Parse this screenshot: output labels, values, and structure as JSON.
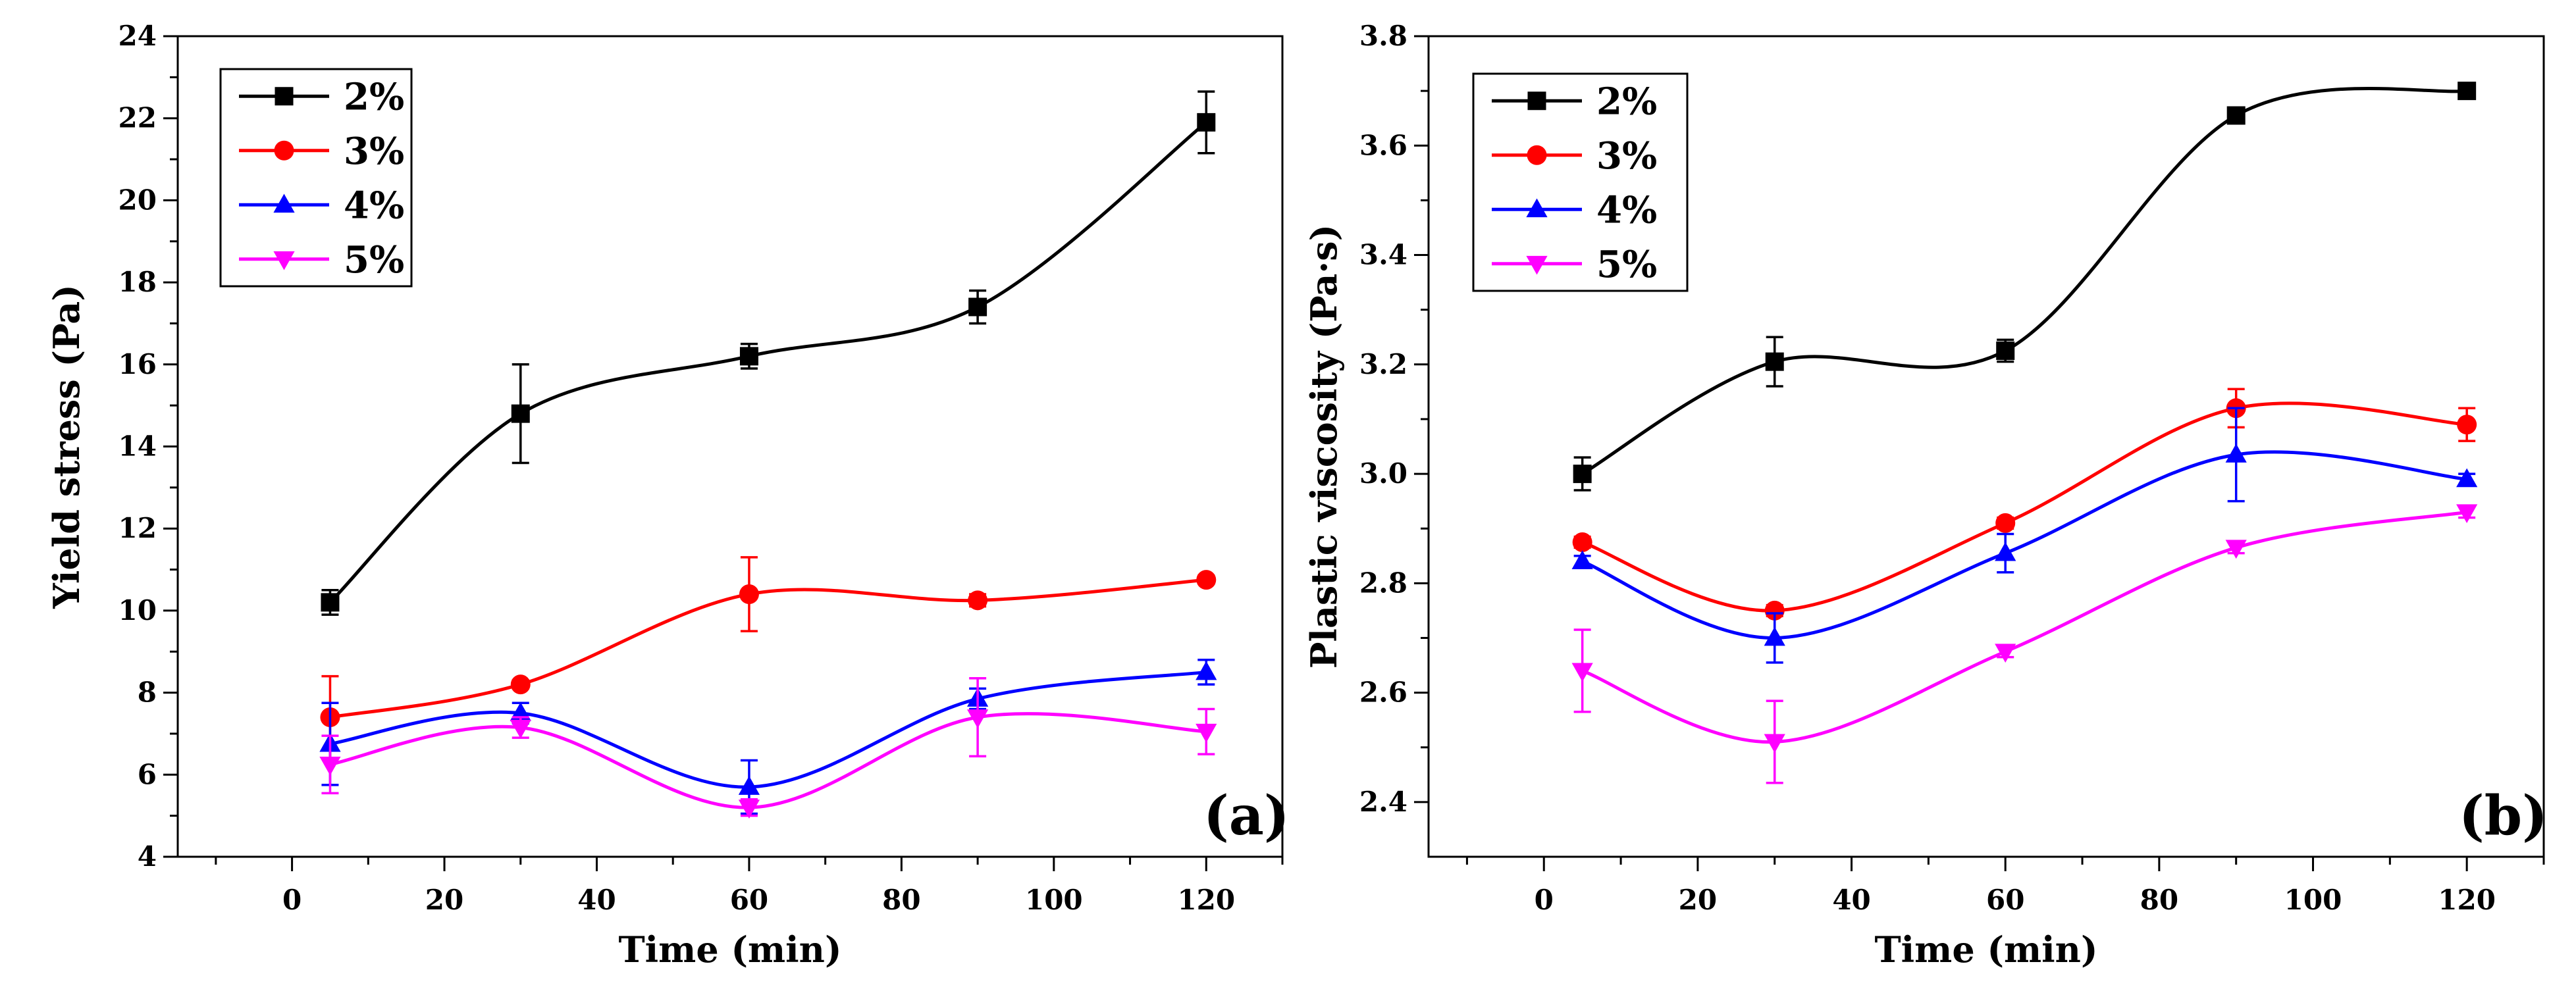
{
  "chart_data": [
    {
      "type": "line",
      "panel_label": "(a)",
      "xlabel": "Time (min)",
      "ylabel": "Yield stress (Pa)",
      "xlim": [
        -15,
        130
      ],
      "ylim": [
        4,
        24
      ],
      "xticks": [
        0,
        20,
        40,
        60,
        80,
        100,
        120
      ],
      "yticks": [
        4,
        6,
        8,
        10,
        12,
        14,
        16,
        18,
        20,
        22,
        24
      ],
      "legend_position": "top-left",
      "x": [
        5,
        30,
        60,
        90,
        120
      ],
      "series": [
        {
          "name": "2%",
          "color": "#000000",
          "marker": "square",
          "values": [
            10.2,
            14.8,
            16.2,
            17.4,
            21.9
          ],
          "errors": [
            0.3,
            1.2,
            0.3,
            0.4,
            0.75
          ]
        },
        {
          "name": "3%",
          "color": "#ff0000",
          "marker": "circle",
          "values": [
            7.4,
            8.2,
            10.4,
            10.25,
            10.75
          ],
          "errors": [
            1.0,
            0.1,
            0.9,
            0.15,
            0.1
          ]
        },
        {
          "name": "4%",
          "color": "#0000ff",
          "marker": "triangle-up",
          "values": [
            6.75,
            7.5,
            5.7,
            7.85,
            8.5
          ],
          "errors": [
            1.0,
            0.25,
            0.65,
            0.25,
            0.3
          ]
        },
        {
          "name": "5%",
          "color": "#ff00ff",
          "marker": "triangle-down",
          "values": [
            6.25,
            7.15,
            5.2,
            7.4,
            7.05
          ],
          "errors": [
            0.7,
            0.25,
            0.2,
            0.95,
            0.55
          ]
        }
      ]
    },
    {
      "type": "line",
      "panel_label": "(b)",
      "xlabel": "Time (min)",
      "ylabel": "Plastic viscosity (Pa·s)",
      "xlim": [
        -15,
        130
      ],
      "ylim": [
        2.3,
        3.8
      ],
      "xticks": [
        0,
        20,
        40,
        60,
        80,
        100,
        120
      ],
      "yticks": [
        2.4,
        2.6,
        2.8,
        3.0,
        3.2,
        3.4,
        3.6,
        3.8
      ],
      "ytick_labels": [
        "2.4",
        "2.6",
        "2.8",
        "3.0",
        "3.2",
        "3.4",
        "3.6",
        "3.8"
      ],
      "legend_position": "top-left",
      "x": [
        5,
        30,
        60,
        90,
        120
      ],
      "series": [
        {
          "name": "2%",
          "color": "#000000",
          "marker": "square",
          "values": [
            3.0,
            3.205,
            3.225,
            3.655,
            3.7
          ],
          "errors": [
            0.03,
            0.045,
            0.02,
            0.01,
            0.01
          ]
        },
        {
          "name": "3%",
          "color": "#ff0000",
          "marker": "circle",
          "values": [
            2.875,
            2.75,
            2.91,
            3.12,
            3.09
          ],
          "errors": [
            0.01,
            0.01,
            0.01,
            0.035,
            0.03
          ]
        },
        {
          "name": "4%",
          "color": "#0000ff",
          "marker": "triangle-up",
          "values": [
            2.84,
            2.7,
            2.855,
            3.035,
            2.99
          ],
          "errors": [
            0.01,
            0.045,
            0.035,
            0.085,
            0.01
          ]
        },
        {
          "name": "5%",
          "color": "#ff00ff",
          "marker": "triangle-down",
          "values": [
            2.64,
            2.51,
            2.675,
            2.865,
            2.93
          ],
          "errors": [
            0.075,
            0.075,
            0.01,
            0.01,
            0.01
          ]
        }
      ]
    }
  ]
}
